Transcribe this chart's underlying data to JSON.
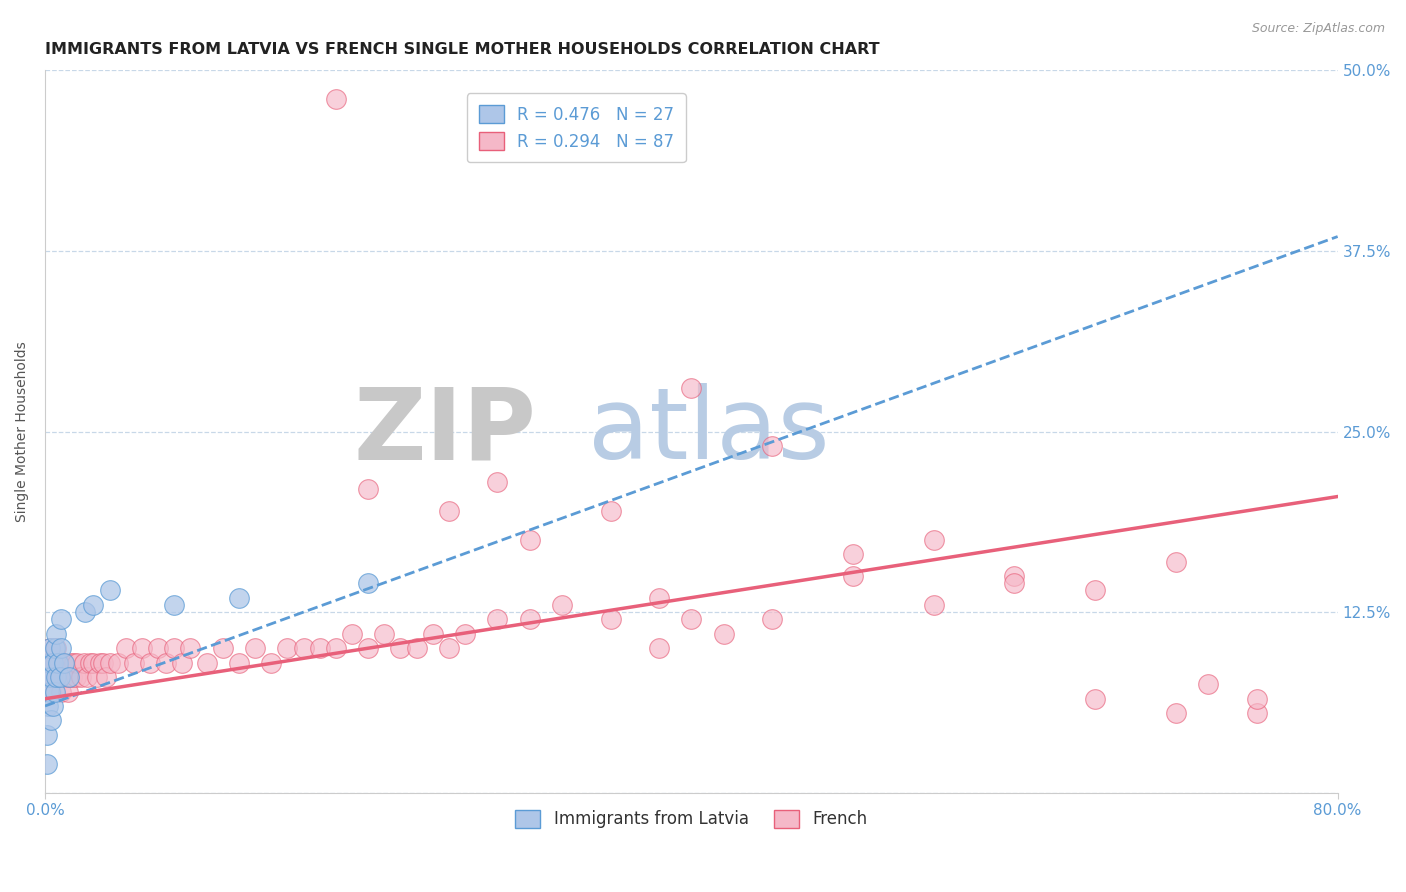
{
  "title": "IMMIGRANTS FROM LATVIA VS FRENCH SINGLE MOTHER HOUSEHOLDS CORRELATION CHART",
  "source_text": "Source: ZipAtlas.com",
  "ylabel": "Single Mother Households",
  "watermark_zip": "ZIP",
  "watermark_atlas": "atlas",
  "legend_label_1": "Immigrants from Latvia",
  "legend_label_2": "French",
  "R1": 0.476,
  "N1": 27,
  "R2": 0.294,
  "N2": 87,
  "color_blue_fill": "#aec6e8",
  "color_blue_edge": "#5b9bd5",
  "color_pink_fill": "#f5b8c8",
  "color_pink_edge": "#e8607a",
  "color_trend_blue": "#5b9bd5",
  "color_trend_pink": "#e8607a",
  "xlim": [
    0.0,
    0.8
  ],
  "ylim": [
    0.0,
    0.5
  ],
  "yticks": [
    0.0,
    0.125,
    0.25,
    0.375,
    0.5
  ],
  "ytick_labels": [
    "",
    "12.5%",
    "25.0%",
    "37.5%",
    "50.0%"
  ],
  "blue_trend_x0": 0.0,
  "blue_trend_y0": 0.06,
  "blue_trend_x1": 0.8,
  "blue_trend_y1": 0.385,
  "pink_trend_x0": 0.0,
  "pink_trend_y0": 0.065,
  "pink_trend_x1": 0.8,
  "pink_trend_y1": 0.205,
  "blue_scatter_x": [
    0.001,
    0.001,
    0.002,
    0.002,
    0.003,
    0.003,
    0.003,
    0.004,
    0.004,
    0.005,
    0.005,
    0.006,
    0.006,
    0.007,
    0.007,
    0.008,
    0.009,
    0.01,
    0.01,
    0.012,
    0.015,
    0.025,
    0.03,
    0.04,
    0.08,
    0.12,
    0.2
  ],
  "blue_scatter_y": [
    0.02,
    0.04,
    0.06,
    0.08,
    0.07,
    0.09,
    0.1,
    0.05,
    0.08,
    0.06,
    0.09,
    0.07,
    0.1,
    0.08,
    0.11,
    0.09,
    0.08,
    0.1,
    0.12,
    0.09,
    0.08,
    0.125,
    0.13,
    0.14,
    0.13,
    0.135,
    0.145
  ],
  "pink_scatter_x": [
    0.001,
    0.002,
    0.003,
    0.004,
    0.005,
    0.006,
    0.007,
    0.008,
    0.009,
    0.01,
    0.011,
    0.012,
    0.013,
    0.014,
    0.015,
    0.016,
    0.017,
    0.018,
    0.019,
    0.02,
    0.022,
    0.024,
    0.026,
    0.028,
    0.03,
    0.032,
    0.034,
    0.036,
    0.038,
    0.04,
    0.045,
    0.05,
    0.055,
    0.06,
    0.065,
    0.07,
    0.075,
    0.08,
    0.085,
    0.09,
    0.1,
    0.11,
    0.12,
    0.13,
    0.14,
    0.15,
    0.16,
    0.17,
    0.18,
    0.19,
    0.2,
    0.21,
    0.22,
    0.23,
    0.24,
    0.25,
    0.26,
    0.28,
    0.3,
    0.32,
    0.35,
    0.38,
    0.4,
    0.42,
    0.45,
    0.5,
    0.55,
    0.6,
    0.65,
    0.7,
    0.75,
    0.4,
    0.35,
    0.55,
    0.2,
    0.28,
    0.45,
    0.5,
    0.6,
    0.25,
    0.3,
    0.38,
    0.18,
    0.65,
    0.7,
    0.72,
    0.75
  ],
  "pink_scatter_y": [
    0.08,
    0.09,
    0.1,
    0.07,
    0.08,
    0.09,
    0.1,
    0.08,
    0.09,
    0.07,
    0.08,
    0.09,
    0.08,
    0.07,
    0.08,
    0.09,
    0.08,
    0.09,
    0.08,
    0.09,
    0.08,
    0.09,
    0.08,
    0.09,
    0.09,
    0.08,
    0.09,
    0.09,
    0.08,
    0.09,
    0.09,
    0.1,
    0.09,
    0.1,
    0.09,
    0.1,
    0.09,
    0.1,
    0.09,
    0.1,
    0.09,
    0.1,
    0.09,
    0.1,
    0.09,
    0.1,
    0.1,
    0.1,
    0.1,
    0.11,
    0.1,
    0.11,
    0.1,
    0.1,
    0.11,
    0.1,
    0.11,
    0.12,
    0.12,
    0.13,
    0.12,
    0.1,
    0.12,
    0.11,
    0.12,
    0.15,
    0.13,
    0.15,
    0.14,
    0.16,
    0.055,
    0.28,
    0.195,
    0.175,
    0.21,
    0.215,
    0.24,
    0.165,
    0.145,
    0.195,
    0.175,
    0.135,
    0.48,
    0.065,
    0.055,
    0.075,
    0.065
  ],
  "background_color": "#ffffff",
  "grid_color": "#c8d8e8",
  "title_fontsize": 11.5,
  "axis_label_fontsize": 10,
  "tick_fontsize": 11,
  "legend_fontsize": 12,
  "right_tick_color": "#5b9bd5",
  "watermark_gray_color": "#c8c8c8",
  "watermark_blue_color": "#b8cce4"
}
